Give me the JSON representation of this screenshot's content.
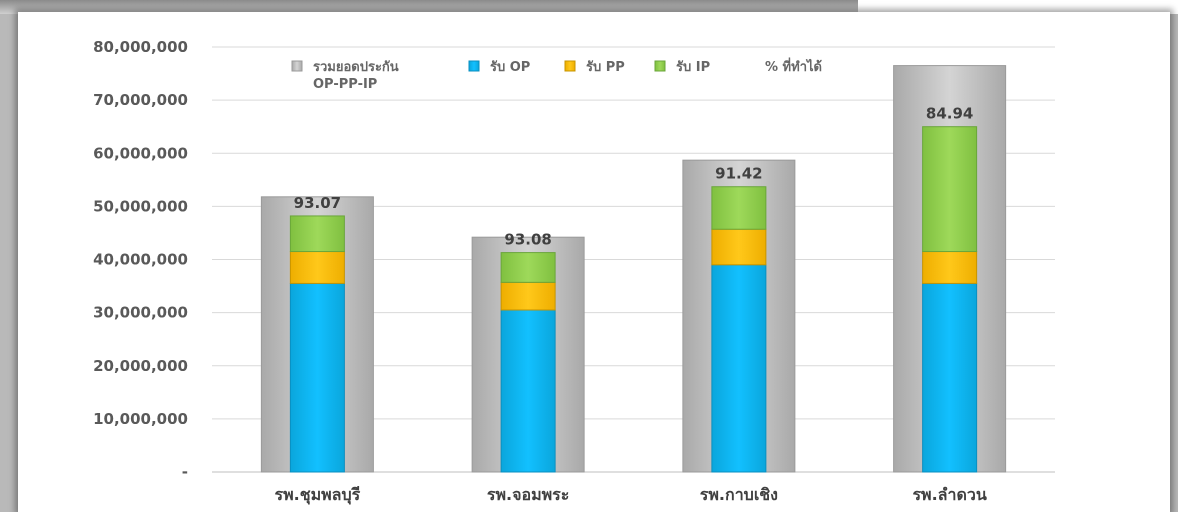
{
  "chart_data": {
    "type": "bar",
    "stacked": true,
    "categories": [
      "รพ.ชุมพลบุรี",
      "รพ.จอมพระ",
      "รพ.กาบเชิง",
      "รพ.ลำดวน"
    ],
    "y_tick_labels": [
      "-",
      "10,000,000",
      "20,000,000",
      "30,000,000",
      "40,000,000",
      "50,000,000",
      "60,000,000",
      "70,000,000",
      "80,000,000"
    ],
    "ylim": [
      0,
      80000000
    ],
    "grid": true,
    "legend_position": "top",
    "total_series": {
      "name": "รวมยอดประกัน OP-PP-IP",
      "name_line1": "รวมยอดประกัน",
      "name_line2": "OP-PP-IP",
      "color": "#c8c8c8",
      "values": [
        51800000,
        44200000,
        58700000,
        76500000
      ]
    },
    "series": [
      {
        "name": "รับ OP",
        "color": "#00b8f2",
        "values": [
          35500000,
          30500000,
          39000000,
          35500000
        ]
      },
      {
        "name": "รับ PP",
        "color": "#ffc000",
        "values": [
          6000000,
          5200000,
          6700000,
          6000000
        ]
      },
      {
        "name": "รับ IP",
        "color": "#92d050",
        "values": [
          6700000,
          5600000,
          8000000,
          23500000
        ]
      }
    ],
    "percent_series": {
      "name": "% ที่ทำได้",
      "values": [
        "93.07",
        "93.08",
        "91.42",
        "84.94"
      ]
    }
  }
}
